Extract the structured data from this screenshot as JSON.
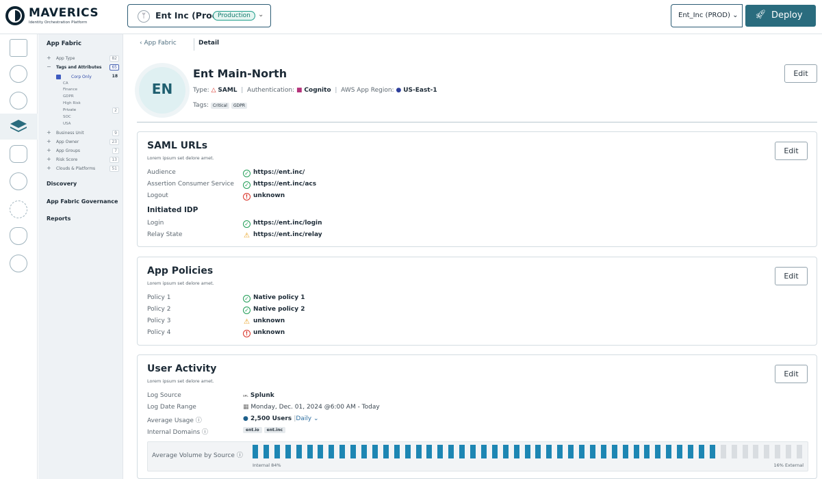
{
  "brand": {
    "name": "MAVERICS",
    "tagline": "Identity Orchestration Platform"
  },
  "env": {
    "name": "Ent Inc (Prod)",
    "badge": "Production"
  },
  "org": {
    "selected": "Ent_Inc (PROD)"
  },
  "deploy_label": "Deploy",
  "nav": {
    "title": "App Fabric",
    "items": [
      {
        "label": "App Type",
        "count": "82"
      },
      {
        "label": "Tags and Attributes",
        "count": "65"
      },
      {
        "label": "Corp Only",
        "count": "18"
      },
      {
        "label": "CA"
      },
      {
        "label": "Finance"
      },
      {
        "label": "GDPR"
      },
      {
        "label": "High Risk"
      },
      {
        "label": "Private",
        "count": "2"
      },
      {
        "label": "SOC"
      },
      {
        "label": "USA"
      },
      {
        "label": "Business Unit",
        "count": "9"
      },
      {
        "label": "App Owner",
        "count": "23"
      },
      {
        "label": "App Groups",
        "count": "7"
      },
      {
        "label": "Risk Score",
        "count": "13"
      },
      {
        "label": "Clouds & Platforms",
        "count": "51"
      }
    ],
    "sections": [
      "Discovery",
      "App Fabric Governance",
      "Reports"
    ]
  },
  "breadcrumb": {
    "parent": "App Fabric",
    "current": "Detail"
  },
  "app": {
    "initials": "EN",
    "title": "Ent Main-North",
    "type_label": "Type:",
    "type_value": "SAML",
    "auth_label": "Authentication:",
    "auth_value": "Cognito",
    "region_label": "AWS App Region:",
    "region_value": "US-East-1",
    "tags_label": "Tags:",
    "tags": [
      "Critical",
      "GDPR"
    ]
  },
  "edit_label": "Edit",
  "saml": {
    "title": "SAML URLs",
    "subtitle": "Lorem ipsum set delore amet.",
    "rows": [
      {
        "label": "Audience",
        "value": "https://ent.inc/",
        "status": "ok"
      },
      {
        "label": "Assertion Consumer Service",
        "value": "https://ent.inc/acs",
        "status": "ok"
      },
      {
        "label": "Logout",
        "value": "unknown",
        "status": "err"
      }
    ],
    "idp_title": "Initiated IDP",
    "idp_rows": [
      {
        "label": "Login",
        "value": "https://ent.inc/login",
        "status": "ok"
      },
      {
        "label": "Relay State",
        "value": "https://ent.inc/relay",
        "status": "warn"
      }
    ]
  },
  "policies": {
    "title": "App Policies",
    "subtitle": "Lorem ipsum set delore amet.",
    "rows": [
      {
        "label": "Policy 1",
        "value": "Native policy 1",
        "status": "ok"
      },
      {
        "label": "Policy 2",
        "value": "Native policy 2",
        "status": "ok"
      },
      {
        "label": "Policy 3",
        "value": "unknown",
        "status": "warn"
      },
      {
        "label": "Policy 4",
        "value": "unknown",
        "status": "err"
      }
    ]
  },
  "activity": {
    "title": "User Activity",
    "subtitle": "Lorem ipsum set delore amet.",
    "log_source_label": "Log Source",
    "log_source_value": "Splunk",
    "log_range_label": "Log Date Range",
    "log_range_value": "Monday, Dec. 01, 2024 @6:00 AM - Today",
    "usage_label": "Average Usage",
    "usage_value": "2,500 Users",
    "usage_period": "Daily",
    "domains_label": "Internal Domains",
    "domains": [
      "ent.io",
      "ent.inc"
    ],
    "volume_label": "Average Volume by Source",
    "internal_label": "Internal 84%",
    "external_label": "16% External",
    "internal_pct": 84,
    "bar_colors": {
      "internal": "#1d86b3",
      "external": "#d9dde1"
    }
  }
}
